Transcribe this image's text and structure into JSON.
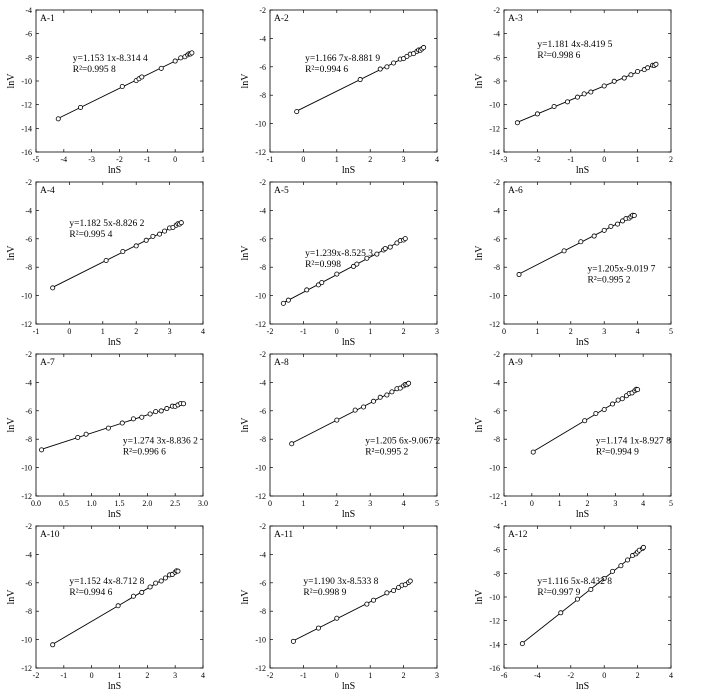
{
  "figure": {
    "panels": [
      {
        "id": "A-1",
        "eq": "y=1.153 1x-8.314 4",
        "r2": "R²=0.995 8"
      },
      {
        "id": "A-2",
        "eq": "y=1.166 7x-8.881 9",
        "r2": "R²=0.994 6"
      },
      {
        "id": "A-3",
        "eq": "y=1.181 4x-8.419 5",
        "r2": "R²=0.998 6"
      },
      {
        "id": "A-4",
        "eq": "y=1.182 5x-8.826 2",
        "r2": "R²=0.995 4"
      },
      {
        "id": "A-5",
        "eq": "y=1.239x-8.525 3",
        "r2": "R²=0.998"
      },
      {
        "id": "A-6",
        "eq": "y=1.205x-9.019 7",
        "r2": "R²=0.995 2"
      },
      {
        "id": "A-7",
        "eq": "y=1.274 3x-8.836 2",
        "r2": "R²=0.996 6"
      },
      {
        "id": "A-8",
        "eq": "y=1.205 6x-9.067 2",
        "r2": "R²=0.995 2"
      },
      {
        "id": "A-9",
        "eq": "y=1.174 1x-8.927 8",
        "r2": "R²=0.994 9"
      },
      {
        "id": "A-10",
        "eq": "y=1.152 4x-8.712 8",
        "r2": "R²=0.994 6"
      },
      {
        "id": "A-11",
        "eq": "y=1.190 3x-8.533 8",
        "r2": "R²=0.998 9"
      },
      {
        "id": "A-12",
        "eq": "y=1.116 5x-8.432 8",
        "r2": "R²=0.997 9"
      }
    ]
  },
  "chart_data": [
    {
      "type": "scatter",
      "id": "A-1",
      "xlabel": "lnS",
      "ylabel": "lnV",
      "xlim": [
        -5,
        1
      ],
      "ylim": [
        -16,
        -4
      ],
      "xticks": [
        -5,
        -4,
        -3,
        -2,
        -1,
        0,
        1
      ],
      "yticks": [
        -16,
        -14,
        -12,
        -10,
        -8,
        -6,
        -4
      ],
      "fit": {
        "slope": 1.1531,
        "intercept": -8.3144
      },
      "x": [
        -4.2,
        -3.4,
        -1.9,
        -1.4,
        -1.3,
        -1.2,
        -0.5,
        0,
        0.2,
        0.35,
        0.45,
        0.5,
        0.55,
        0.6
      ]
    },
    {
      "type": "scatter",
      "id": "A-2",
      "xlabel": "lnS",
      "ylabel": "lnV",
      "xlim": [
        -1,
        4
      ],
      "ylim": [
        -12,
        -2
      ],
      "xticks": [
        -1,
        0,
        1,
        2,
        3,
        4
      ],
      "yticks": [
        -12,
        -10,
        -8,
        -6,
        -4,
        -2
      ],
      "fit": {
        "slope": 1.1667,
        "intercept": -8.8819
      },
      "x": [
        -0.2,
        1.7,
        2.3,
        2.5,
        2.7,
        2.9,
        3.0,
        3.1,
        3.2,
        3.3,
        3.4,
        3.45,
        3.5,
        3.55,
        3.6
      ]
    },
    {
      "type": "scatter",
      "id": "A-3",
      "xlabel": "lnS",
      "ylabel": "lnV",
      "xlim": [
        -3,
        2
      ],
      "ylim": [
        -14,
        -2
      ],
      "xticks": [
        -3,
        -2,
        -1,
        0,
        1,
        2
      ],
      "yticks": [
        -14,
        -12,
        -10,
        -8,
        -6,
        -4,
        -2
      ],
      "fit": {
        "slope": 1.1814,
        "intercept": -8.4195
      },
      "x": [
        -2.6,
        -2.0,
        -1.5,
        -1.1,
        -0.8,
        -0.6,
        -0.4,
        0,
        0.3,
        0.6,
        0.8,
        1.0,
        1.2,
        1.3,
        1.45,
        1.5,
        1.55
      ]
    },
    {
      "type": "scatter",
      "id": "A-4",
      "xlabel": "lnS",
      "ylabel": "lnV",
      "xlim": [
        -1,
        4
      ],
      "ylim": [
        -12,
        -2
      ],
      "xticks": [
        -1,
        0,
        1,
        2,
        3,
        4
      ],
      "yticks": [
        -12,
        -10,
        -8,
        -6,
        -4,
        -2
      ],
      "fit": {
        "slope": 1.1825,
        "intercept": -8.8262
      },
      "x": [
        -0.5,
        1.1,
        1.6,
        2.0,
        2.3,
        2.5,
        2.7,
        2.85,
        3.0,
        3.1,
        3.2,
        3.25,
        3.3,
        3.35
      ]
    },
    {
      "type": "scatter",
      "id": "A-5",
      "xlabel": "lnS",
      "ylabel": "lnV",
      "xlim": [
        -2,
        3
      ],
      "ylim": [
        -12,
        -2
      ],
      "xticks": [
        -2,
        -1,
        0,
        1,
        2,
        3
      ],
      "yticks": [
        -12,
        -10,
        -8,
        -6,
        -4,
        -2
      ],
      "fit": {
        "slope": 1.239,
        "intercept": -8.5253
      },
      "x": [
        -1.6,
        -1.45,
        -0.9,
        -0.55,
        -0.45,
        0,
        0.5,
        0.6,
        0.9,
        1.2,
        1.4,
        1.45,
        1.6,
        1.8,
        1.9,
        2.0,
        2.05
      ]
    },
    {
      "type": "scatter",
      "id": "A-6",
      "xlabel": "lnS",
      "ylabel": "lnV",
      "xlim": [
        0,
        5
      ],
      "ylim": [
        -12,
        -2
      ],
      "xticks": [
        0,
        1,
        2,
        3,
        4,
        5
      ],
      "yticks": [
        -12,
        -10,
        -8,
        -6,
        -4,
        -2
      ],
      "fit": {
        "slope": 1.205,
        "intercept": -9.0197
      },
      "x": [
        0.45,
        1.8,
        2.3,
        2.7,
        3.0,
        3.2,
        3.4,
        3.55,
        3.65,
        3.75,
        3.8,
        3.85,
        3.9
      ]
    },
    {
      "type": "scatter",
      "id": "A-7",
      "xlabel": "lnS",
      "ylabel": "lnV",
      "xlim": [
        0,
        3.0
      ],
      "ylim": [
        -12,
        -2
      ],
      "xticks": [
        0,
        0.5,
        1.0,
        1.5,
        2.0,
        2.5,
        3.0
      ],
      "yticks": [
        -12,
        -10,
        -8,
        -6,
        -4,
        -2
      ],
      "fit": {
        "slope": 1.2743,
        "intercept": -8.8362
      },
      "x": [
        0.1,
        0.75,
        0.9,
        1.3,
        1.55,
        1.75,
        1.9,
        2.05,
        2.15,
        2.25,
        2.35,
        2.45,
        2.5,
        2.55,
        2.6,
        2.65
      ]
    },
    {
      "type": "scatter",
      "id": "A-8",
      "xlabel": "lnS",
      "ylabel": "lnV",
      "xlim": [
        0,
        5
      ],
      "ylim": [
        -12,
        -2
      ],
      "xticks": [
        0,
        1,
        2,
        3,
        4,
        5
      ],
      "yticks": [
        -12,
        -10,
        -8,
        -6,
        -4,
        -2
      ],
      "fit": {
        "slope": 1.2056,
        "intercept": -9.0672
      },
      "x": [
        0.65,
        2.0,
        2.55,
        2.8,
        3.1,
        3.3,
        3.5,
        3.65,
        3.8,
        3.9,
        4.0,
        4.05,
        4.1,
        4.15
      ]
    },
    {
      "type": "scatter",
      "id": "A-9",
      "xlabel": "lnS",
      "ylabel": "lnV",
      "xlim": [
        -1,
        5
      ],
      "ylim": [
        -12,
        -2
      ],
      "xticks": [
        -1,
        0,
        1,
        2,
        3,
        4,
        5
      ],
      "yticks": [
        -12,
        -10,
        -8,
        -6,
        -4,
        -2
      ],
      "fit": {
        "slope": 1.1741,
        "intercept": -8.9278
      },
      "x": [
        0.05,
        1.9,
        2.3,
        2.6,
        2.9,
        3.1,
        3.25,
        3.4,
        3.5,
        3.6,
        3.7,
        3.75,
        3.8
      ]
    },
    {
      "type": "scatter",
      "id": "A-10",
      "xlabel": "lnS",
      "ylabel": "lnV",
      "xlim": [
        -2,
        4
      ],
      "ylim": [
        -12,
        -2
      ],
      "xticks": [
        -2,
        -1,
        0,
        1,
        2,
        3,
        4
      ],
      "yticks": [
        -12,
        -10,
        -8,
        -6,
        -4,
        -2
      ],
      "fit": {
        "slope": 1.1524,
        "intercept": -8.7128
      },
      "x": [
        -1.4,
        0.95,
        1.5,
        1.8,
        2.1,
        2.3,
        2.5,
        2.65,
        2.8,
        2.9,
        3.0,
        3.05,
        3.1
      ]
    },
    {
      "type": "scatter",
      "id": "A-11",
      "xlabel": "lnS",
      "ylabel": "lnV",
      "xlim": [
        -2,
        3
      ],
      "ylim": [
        -12,
        -2
      ],
      "xticks": [
        -2,
        -1,
        0,
        1,
        2,
        3
      ],
      "yticks": [
        -12,
        -10,
        -8,
        -6,
        -4,
        -2
      ],
      "fit": {
        "slope": 1.1903,
        "intercept": -8.5338
      },
      "x": [
        -1.3,
        -0.55,
        0,
        0.9,
        1.1,
        1.5,
        1.7,
        1.85,
        1.95,
        2.05,
        2.15,
        2.2
      ]
    },
    {
      "type": "scatter",
      "id": "A-12",
      "xlabel": "lnS",
      "ylabel": "lnV",
      "xlim": [
        -6,
        4
      ],
      "ylim": [
        -16,
        -4
      ],
      "xticks": [
        -6,
        -4,
        -2,
        0,
        2,
        4
      ],
      "yticks": [
        -16,
        -14,
        -12,
        -10,
        -8,
        -6,
        -4
      ],
      "fit": {
        "slope": 1.1165,
        "intercept": -8.4328
      },
      "x": [
        -4.9,
        -2.6,
        -1.6,
        -0.8,
        0,
        0.5,
        1.0,
        1.4,
        1.7,
        1.9,
        2.0,
        2.1,
        2.3,
        2.35
      ]
    }
  ]
}
